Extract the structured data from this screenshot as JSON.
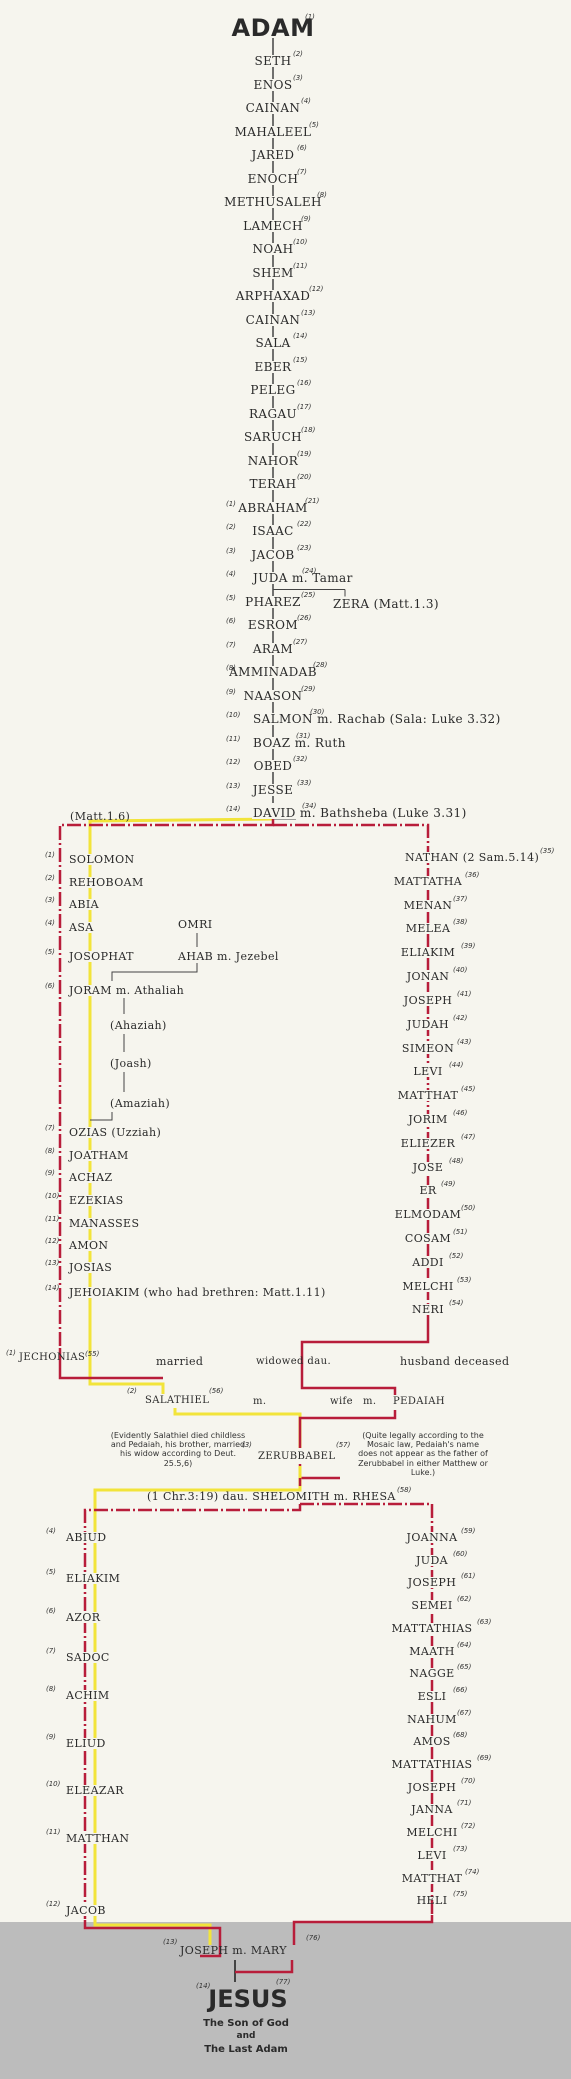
{
  "title": "ADAM",
  "title_num": "(1)",
  "adam_to_david": [
    {
      "name": "SETH",
      "num": "(2)"
    },
    {
      "name": "ENOS",
      "num": "(3)"
    },
    {
      "name": "CAINAN",
      "num": "(4)"
    },
    {
      "name": "MAHALEEL",
      "num": "(5)"
    },
    {
      "name": "JARED",
      "num": "(6)"
    },
    {
      "name": "ENOCH",
      "num": "(7)"
    },
    {
      "name": "METHUSALEH",
      "num": "(8)"
    },
    {
      "name": "LAMECH",
      "num": "(9)"
    },
    {
      "name": "NOAH",
      "num": "(10)"
    },
    {
      "name": "SHEM",
      "num": "(11)"
    },
    {
      "name": "ARPHAXAD",
      "num": "(12)"
    },
    {
      "name": "CAINAN",
      "num": "(13)"
    },
    {
      "name": "SALA",
      "num": "(14)"
    },
    {
      "name": "EBER",
      "num": "(15)"
    },
    {
      "name": "PELEG",
      "num": "(16)"
    },
    {
      "name": "RAGAU",
      "num": "(17)"
    },
    {
      "name": "SARUCH",
      "num": "(18)"
    },
    {
      "name": "NAHOR",
      "num": "(19)"
    },
    {
      "name": "TERAH",
      "num": "(20)"
    },
    {
      "name": "ABRAHAM",
      "num": "(21)",
      "lnum": "(1)"
    },
    {
      "name": "ISAAC",
      "num": "(22)",
      "lnum": "(2)"
    },
    {
      "name": "JACOB",
      "num": "(23)",
      "lnum": "(3)"
    },
    {
      "name": "JUDA m. Tamar",
      "num": "(24)",
      "lnum": "(4)"
    },
    {
      "name": "PHAREZ",
      "num": "(25)",
      "lnum": "(5)"
    },
    {
      "name": "ESROM",
      "num": "(26)",
      "lnum": "(6)"
    },
    {
      "name": "ARAM",
      "num": "(27)",
      "lnum": "(7)"
    },
    {
      "name": "AMMINADAB",
      "num": "(28)",
      "lnum": "(8)"
    },
    {
      "name": "NAASON",
      "num": "(29)",
      "lnum": "(9)"
    },
    {
      "name": "SALMON m. Rachab (Sala: Luke 3.32)",
      "num": "(30)",
      "lnum": "(10)"
    },
    {
      "name": "BOAZ m. Ruth",
      "num": "(31)",
      "lnum": "(11)"
    },
    {
      "name": "OBED",
      "num": "(32)",
      "lnum": "(12)"
    },
    {
      "name": "JESSE",
      "num": "(33)",
      "lnum": "(13)"
    },
    {
      "name": "DAVID m. Bathsheba (Luke 3.31)",
      "num": "(34)",
      "lnum": "(14)"
    }
  ],
  "zera": "ZERA (Matt.1.3)",
  "matt_ref": "(Matt.1.6)",
  "solomon_line": [
    {
      "name": "SOLOMON",
      "num": "(1)"
    },
    {
      "name": "REHOBOAM",
      "num": "(2)"
    },
    {
      "name": "ABIA",
      "num": "(3)"
    },
    {
      "name": "ASA",
      "num": "(4)"
    },
    {
      "name": "JOSOPHAT",
      "num": "(5)"
    },
    {
      "name": "JORAM m. Athaliah",
      "num": "(6)"
    },
    {
      "name": "OZIAS (Uzziah)",
      "num": "(7)"
    },
    {
      "name": "JOATHAM",
      "num": "(8)"
    },
    {
      "name": "ACHAZ",
      "num": "(9)"
    },
    {
      "name": "EZEKIAS",
      "num": "(10)"
    },
    {
      "name": "MANASSES",
      "num": "(11)"
    },
    {
      "name": "AMON",
      "num": "(12)"
    },
    {
      "name": "JOSIAS",
      "num": "(13)"
    },
    {
      "name": "JEHOIAKIM (who had brethren: Matt.1.11)",
      "num": "(14)"
    }
  ],
  "omitted": [
    "(Ahaziah)",
    "(Joash)",
    "(Amaziah)"
  ],
  "omri": "OMRI",
  "ahab": "AHAB m. Jezebel",
  "nathan_line": [
    {
      "name": "NATHAN (2 Sam.5.14)",
      "num": "(35)"
    },
    {
      "name": "MATTATHA",
      "num": "(36)"
    },
    {
      "name": "MENAN",
      "num": "(37)"
    },
    {
      "name": "MELEA",
      "num": "(38)"
    },
    {
      "name": "ELIAKIM",
      "num": "(39)"
    },
    {
      "name": "JONAN",
      "num": "(40)"
    },
    {
      "name": "JOSEPH",
      "num": "(41)"
    },
    {
      "name": "JUDAH",
      "num": "(42)"
    },
    {
      "name": "SIMEON",
      "num": "(43)"
    },
    {
      "name": "LEVI",
      "num": "(44)"
    },
    {
      "name": "MATTHAT",
      "num": "(45)"
    },
    {
      "name": "JORIM",
      "num": "(46)"
    },
    {
      "name": "ELIEZER",
      "num": "(47)"
    },
    {
      "name": "JOSE",
      "num": "(48)"
    },
    {
      "name": "ER",
      "num": "(49)"
    },
    {
      "name": "ELMODAM",
      "num": "(50)"
    },
    {
      "name": "COSAM",
      "num": "(51)"
    },
    {
      "name": "ADDI",
      "num": "(52)"
    },
    {
      "name": "MELCHI",
      "num": "(53)"
    },
    {
      "name": "NERI",
      "num": "(54)"
    }
  ],
  "exile": {
    "jechonias": "JECHONIAS",
    "jechonias_lnum": "(1)",
    "jechonias_num": "(55)",
    "married": "married",
    "widowed": "widowed dau.",
    "husband": "husband deceased",
    "salathiel": "SALATHIEL",
    "salathiel_lnum": "(2)",
    "salathiel_num": "(56)",
    "m": "m.",
    "wife": "wife",
    "m2": "m.",
    "pedaiah": "PEDAIAH",
    "zerubbabel": "ZERUBBABEL",
    "zerubbabel_lnum": "(3)",
    "zerubbabel_num": "(57)",
    "note_left": "(Evidently Salathiel died childless and Pedaiah, his brother, married his widow according to Deut. 25.5,6)",
    "note_right": "(Quite legally according to the Mosaic law, Pedaiah's name does not appear as the father of Zerubbabel in either Matthew or Luke.)",
    "shelomith": "(1 Chr.3:19) dau. SHELOMITH m. RHESA",
    "shelomith_num": "(58)"
  },
  "matthew_end": [
    {
      "name": "ABIUD",
      "num": "(4)"
    },
    {
      "name": "ELIAKIM",
      "num": "(5)"
    },
    {
      "name": "AZOR",
      "num": "(6)"
    },
    {
      "name": "SADOC",
      "num": "(7)"
    },
    {
      "name": "ACHIM",
      "num": "(8)"
    },
    {
      "name": "ELIUD",
      "num": "(9)"
    },
    {
      "name": "ELEAZAR",
      "num": "(10)"
    },
    {
      "name": "MATTHAN",
      "num": "(11)"
    },
    {
      "name": "JACOB",
      "num": "(12)"
    }
  ],
  "luke_end": [
    {
      "name": "JOANNA",
      "num": "(59)"
    },
    {
      "name": "JUDA",
      "num": "(60)"
    },
    {
      "name": "JOSEPH",
      "num": "(61)"
    },
    {
      "name": "SEMEI",
      "num": "(62)"
    },
    {
      "name": "MATTATHIAS",
      "num": "(63)"
    },
    {
      "name": "MAATH",
      "num": "(64)"
    },
    {
      "name": "NAGGE",
      "num": "(65)"
    },
    {
      "name": "ESLI",
      "num": "(66)"
    },
    {
      "name": "NAHUM",
      "num": "(67)"
    },
    {
      "name": "AMOS",
      "num": "(68)"
    },
    {
      "name": "MATTATHIAS",
      "num": "(69)"
    },
    {
      "name": "JOSEPH",
      "num": "(70)"
    },
    {
      "name": "JANNA",
      "num": "(71)"
    },
    {
      "name": "MELCHI",
      "num": "(72)"
    },
    {
      "name": "LEVI",
      "num": "(73)"
    },
    {
      "name": "MATTHAT",
      "num": "(74)"
    },
    {
      "name": "HELI",
      "num": "(75)"
    }
  ],
  "joseph_mary": "JOSEPH m. MARY",
  "joseph_lnum": "(13)",
  "mary_num": "(76)",
  "jesus": "JESUS",
  "jesus_lnum": "(14)",
  "jesus_num": "(77)",
  "subtitle1": "The Son of God",
  "subtitle2": "and",
  "subtitle3": "The Last Adam",
  "colors": {
    "line_red": "#b81d3a",
    "line_yellow": "#f2e43a",
    "line_dark": "#444444",
    "band": "#bcbcbc"
  }
}
